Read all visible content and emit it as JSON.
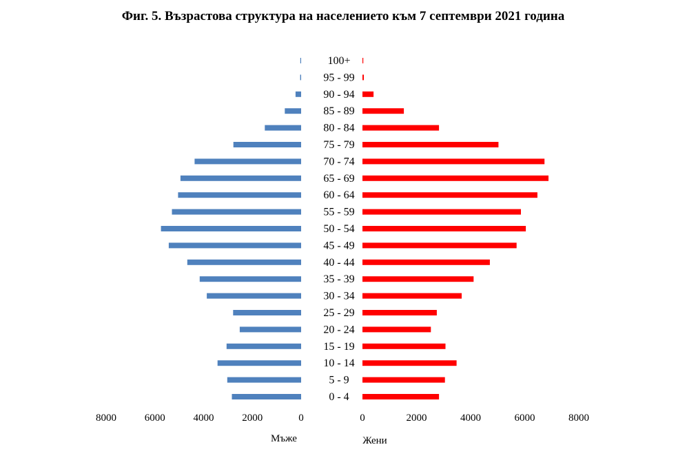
{
  "chart_data": {
    "type": "bar",
    "title": "Фиг. 5. Възрастова структура на населението към 7 септември 2021 година",
    "categories": [
      "100+",
      "95 - 99",
      "90 - 94",
      "85 - 89",
      "80 - 84",
      "75 - 79",
      "70 - 74",
      "65 - 69",
      "60 - 64",
      "55 - 59",
      "50 - 54",
      "45 - 49",
      "40 - 44",
      "35 - 39",
      "30 - 34",
      "25 - 29",
      "20 - 24",
      "15 - 19",
      "10 - 14",
      "5 - 9",
      "0 - 4"
    ],
    "series": [
      {
        "name": "Мъже",
        "color": "#4f81bd",
        "values": [
          10,
          40,
          230,
          670,
          1490,
          2780,
          4370,
          4950,
          5050,
          5300,
          5750,
          5430,
          4670,
          4160,
          3870,
          2790,
          2520,
          3060,
          3430,
          3030,
          2840
        ]
      },
      {
        "name": "Жени",
        "color": "#ff0000",
        "values": [
          20,
          50,
          410,
          1530,
          2830,
          5030,
          6730,
          6880,
          6470,
          5860,
          6040,
          5700,
          4710,
          4110,
          3670,
          2750,
          2530,
          3070,
          3480,
          3050,
          2830
        ]
      }
    ],
    "xlim_left": [
      0,
      8000
    ],
    "xlim_right": [
      0,
      8000
    ],
    "left_ticks": [
      "8000",
      "6000",
      "4000",
      "2000",
      "0"
    ],
    "right_ticks": [
      "0",
      "2000",
      "4000",
      "6000",
      "8000"
    ],
    "left_axis_label": "Мъже",
    "right_axis_label": "Жени",
    "grid": false,
    "legend": "none"
  }
}
